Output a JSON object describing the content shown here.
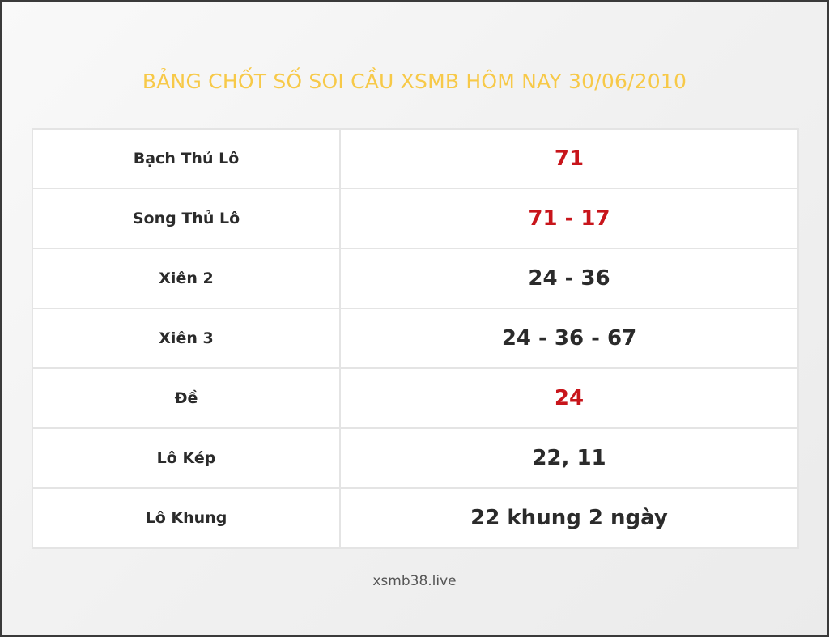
{
  "title": "BẢNG CHỐT SỐ SOI CẦU XSMB HÔM NAY 30/06/2010",
  "rows": [
    {
      "label": "Bạch Thủ Lô",
      "value": "71",
      "color": "#c8151b"
    },
    {
      "label": "Song Thủ Lô",
      "value": "71 - 17",
      "color": "#c8151b"
    },
    {
      "label": "Xiên 2",
      "value": "24 - 36",
      "color": "#2b2b2b"
    },
    {
      "label": "Xiên 3",
      "value": "24 - 36 - 67",
      "color": "#2b2b2b"
    },
    {
      "label": "Đề",
      "value": "24",
      "color": "#c8151b"
    },
    {
      "label": "Lô Kép",
      "value": "22, 11",
      "color": "#2b2b2b"
    },
    {
      "label": "Lô Khung",
      "value": "22 khung 2 ngày",
      "color": "#2b2b2b"
    }
  ],
  "footer": "xsmb38.live"
}
